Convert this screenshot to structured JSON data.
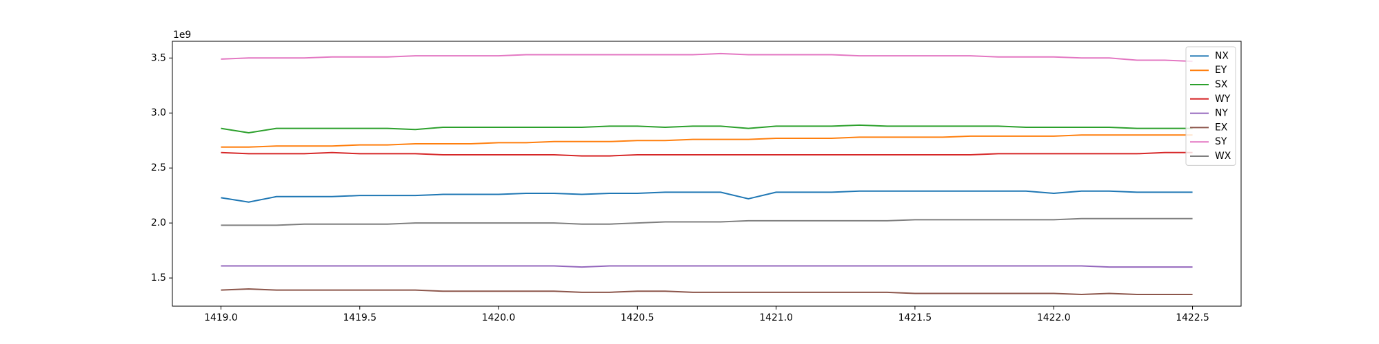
{
  "chart_data": {
    "type": "line",
    "offset_label": "1e9",
    "x": [
      1419.0,
      1419.1,
      1419.2,
      1419.3,
      1419.4,
      1419.5,
      1419.6,
      1419.7,
      1419.8,
      1419.9,
      1420.0,
      1420.1,
      1420.2,
      1420.3,
      1420.4,
      1420.5,
      1420.6,
      1420.7,
      1420.8,
      1420.9,
      1421.0,
      1421.1,
      1421.2,
      1421.3,
      1421.4,
      1421.5,
      1421.6,
      1421.7,
      1421.8,
      1421.9,
      1422.0,
      1422.1,
      1422.2,
      1422.3,
      1422.4,
      1422.5
    ],
    "series": [
      {
        "name": "NX",
        "color": "#1f77b4",
        "values": [
          2.23,
          2.19,
          2.24,
          2.24,
          2.24,
          2.25,
          2.25,
          2.25,
          2.26,
          2.26,
          2.26,
          2.27,
          2.27,
          2.26,
          2.27,
          2.27,
          2.28,
          2.28,
          2.28,
          2.22,
          2.28,
          2.28,
          2.28,
          2.29,
          2.29,
          2.29,
          2.29,
          2.29,
          2.29,
          2.29,
          2.27,
          2.29,
          2.29,
          2.28,
          2.28,
          2.28
        ]
      },
      {
        "name": "EY",
        "color": "#ff7f0e",
        "values": [
          2.69,
          2.69,
          2.7,
          2.7,
          2.7,
          2.71,
          2.71,
          2.72,
          2.72,
          2.72,
          2.73,
          2.73,
          2.74,
          2.74,
          2.74,
          2.75,
          2.75,
          2.76,
          2.76,
          2.76,
          2.77,
          2.77,
          2.77,
          2.78,
          2.78,
          2.78,
          2.78,
          2.79,
          2.79,
          2.79,
          2.79,
          2.8,
          2.8,
          2.8,
          2.8,
          2.8
        ]
      },
      {
        "name": "SX",
        "color": "#2ca02c",
        "values": [
          2.86,
          2.82,
          2.86,
          2.86,
          2.86,
          2.86,
          2.86,
          2.85,
          2.87,
          2.87,
          2.87,
          2.87,
          2.87,
          2.87,
          2.88,
          2.88,
          2.87,
          2.88,
          2.88,
          2.86,
          2.88,
          2.88,
          2.88,
          2.89,
          2.88,
          2.88,
          2.88,
          2.88,
          2.88,
          2.87,
          2.87,
          2.87,
          2.87,
          2.86,
          2.86,
          2.86
        ]
      },
      {
        "name": "WY",
        "color": "#d62728",
        "values": [
          2.64,
          2.63,
          2.63,
          2.63,
          2.64,
          2.63,
          2.63,
          2.63,
          2.62,
          2.62,
          2.62,
          2.62,
          2.62,
          2.61,
          2.61,
          2.62,
          2.62,
          2.62,
          2.62,
          2.62,
          2.62,
          2.62,
          2.62,
          2.62,
          2.62,
          2.62,
          2.62,
          2.62,
          2.63,
          2.63,
          2.63,
          2.63,
          2.63,
          2.63,
          2.64,
          2.64
        ]
      },
      {
        "name": "NY",
        "color": "#9467bd",
        "values": [
          1.61,
          1.61,
          1.61,
          1.61,
          1.61,
          1.61,
          1.61,
          1.61,
          1.61,
          1.61,
          1.61,
          1.61,
          1.61,
          1.6,
          1.61,
          1.61,
          1.61,
          1.61,
          1.61,
          1.61,
          1.61,
          1.61,
          1.61,
          1.61,
          1.61,
          1.61,
          1.61,
          1.61,
          1.61,
          1.61,
          1.61,
          1.61,
          1.6,
          1.6,
          1.6,
          1.6
        ]
      },
      {
        "name": "EX",
        "color": "#8c564b",
        "values": [
          1.39,
          1.4,
          1.39,
          1.39,
          1.39,
          1.39,
          1.39,
          1.39,
          1.38,
          1.38,
          1.38,
          1.38,
          1.38,
          1.37,
          1.37,
          1.38,
          1.38,
          1.37,
          1.37,
          1.37,
          1.37,
          1.37,
          1.37,
          1.37,
          1.37,
          1.36,
          1.36,
          1.36,
          1.36,
          1.36,
          1.36,
          1.35,
          1.36,
          1.35,
          1.35,
          1.35
        ]
      },
      {
        "name": "SY",
        "color": "#e377c2",
        "values": [
          3.49,
          3.5,
          3.5,
          3.5,
          3.51,
          3.51,
          3.51,
          3.52,
          3.52,
          3.52,
          3.52,
          3.53,
          3.53,
          3.53,
          3.53,
          3.53,
          3.53,
          3.53,
          3.54,
          3.53,
          3.53,
          3.53,
          3.53,
          3.52,
          3.52,
          3.52,
          3.52,
          3.52,
          3.51,
          3.51,
          3.51,
          3.5,
          3.5,
          3.48,
          3.48,
          3.47
        ]
      },
      {
        "name": "WX",
        "color": "#7f7f7f",
        "values": [
          1.98,
          1.98,
          1.98,
          1.99,
          1.99,
          1.99,
          1.99,
          2.0,
          2.0,
          2.0,
          2.0,
          2.0,
          2.0,
          1.99,
          1.99,
          2.0,
          2.01,
          2.01,
          2.01,
          2.02,
          2.02,
          2.02,
          2.02,
          2.02,
          2.02,
          2.03,
          2.03,
          2.03,
          2.03,
          2.03,
          2.03,
          2.04,
          2.04,
          2.04,
          2.04,
          2.04
        ]
      }
    ],
    "xlim": [
      1418.825,
      1422.675
    ],
    "ylim": [
      1.244,
      3.652
    ],
    "xticks": [
      {
        "value": 1419,
        "label": "1419.0"
      },
      1419.5,
      {
        "value": 1420,
        "label": "1420.0"
      },
      1420.5,
      {
        "value": 1421,
        "label": "1421.0"
      },
      1421.5,
      {
        "value": 1422,
        "label": "1422.0"
      },
      1422.5
    ],
    "yticks": [
      1.5,
      {
        "value": 2,
        "label": "2.0"
      },
      2.5,
      {
        "value": 3,
        "label": "3.0"
      },
      3.5
    ],
    "grid": false,
    "legend": "upper right"
  }
}
